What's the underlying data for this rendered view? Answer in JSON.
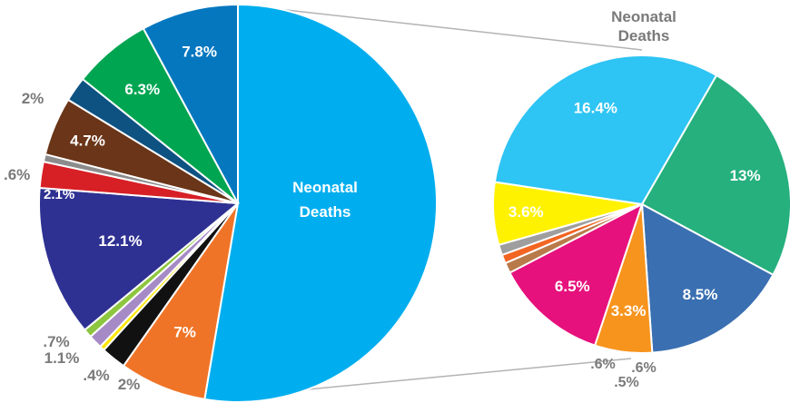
{
  "chart_data": [
    {
      "type": "pie",
      "title": "",
      "center_label": "Neonatal Deaths",
      "slices": [
        {
          "label": "Neonatal Deaths",
          "value": 52.1,
          "color": "#00aeef",
          "value_label": ""
        },
        {
          "label": "",
          "value": 7.0,
          "color": "#f07427",
          "value_label": "7%"
        },
        {
          "label": "",
          "value": 2.0,
          "color": "#111111",
          "value_label": "2%"
        },
        {
          "label": "",
          "value": 0.4,
          "color": "#ffe600",
          "value_label": ".4%"
        },
        {
          "label": "",
          "value": 1.1,
          "color": "#a68ac6",
          "value_label": "1.1%"
        },
        {
          "label": "",
          "value": 0.7,
          "color": "#8dc63f",
          "value_label": ".7%"
        },
        {
          "label": "",
          "value": 12.1,
          "color": "#2e3192",
          "value_label": "12.1%"
        },
        {
          "label": "",
          "value": 2.1,
          "color": "#d71f26",
          "value_label": "2.1%"
        },
        {
          "label": "",
          "value": 0.6,
          "color": "#8c8c8c",
          "value_label": ".6%"
        },
        {
          "label": "",
          "value": 4.7,
          "color": "#6a3518",
          "value_label": "4.7%"
        },
        {
          "label": "",
          "value": 2.0,
          "color": "#0e5282",
          "value_label": "2%"
        },
        {
          "label": "",
          "value": 6.3,
          "color": "#00a551",
          "value_label": "6.3%"
        },
        {
          "label": "",
          "value": 7.8,
          "color": "#0477bf",
          "value_label": "7.8%"
        }
      ]
    },
    {
      "type": "pie",
      "title": "Neonatal Deaths",
      "slices": [
        {
          "label": "",
          "value": 13.0,
          "color": "#25b07d",
          "value_label": "13%"
        },
        {
          "label": "",
          "value": 8.5,
          "color": "#3a6fb1",
          "value_label": "8.5%"
        },
        {
          "label": "",
          "value": 3.3,
          "color": "#f7941d",
          "value_label": "3.3%"
        },
        {
          "label": "",
          "value": 6.5,
          "color": "#e6117c",
          "value_label": "6.5%"
        },
        {
          "label": "",
          "value": 0.6,
          "color": "#b97a4a",
          "value_label": ".6%"
        },
        {
          "label": "",
          "value": 0.5,
          "color": "#f26522",
          "value_label": ".5%"
        },
        {
          "label": "",
          "value": 0.6,
          "color": "#9e9e9e",
          "value_label": ".6%"
        },
        {
          "label": "",
          "value": 3.6,
          "color": "#fff200",
          "value_label": "3.6%"
        },
        {
          "label": "",
          "value": 16.4,
          "color": "#2ec4f3",
          "value_label": "16.4%"
        }
      ]
    }
  ]
}
